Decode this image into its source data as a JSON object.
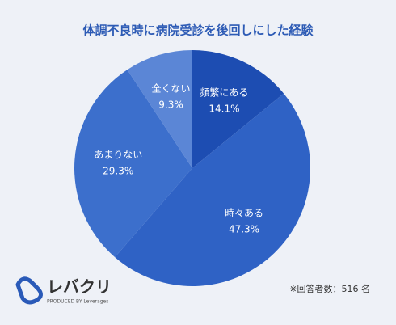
{
  "chart_data": {
    "type": "pie",
    "title": "体調不良時に病院受診を後回しにした経験",
    "categories": [
      "頻繁にある",
      "時々ある",
      "あまりない",
      "全くない"
    ],
    "values": [
      14.1,
      47.3,
      29.3,
      9.3
    ],
    "value_labels": [
      "14.1%",
      "47.3%",
      "29.3%",
      "9.3%"
    ],
    "colors": [
      "#1d4db2",
      "#2f62c5",
      "#3c6fcc",
      "#5b86d6"
    ],
    "note": "※回答者数：516 名"
  },
  "logo": {
    "name": "レバクリ",
    "tagline": "PRODUCED BY Leverages"
  }
}
